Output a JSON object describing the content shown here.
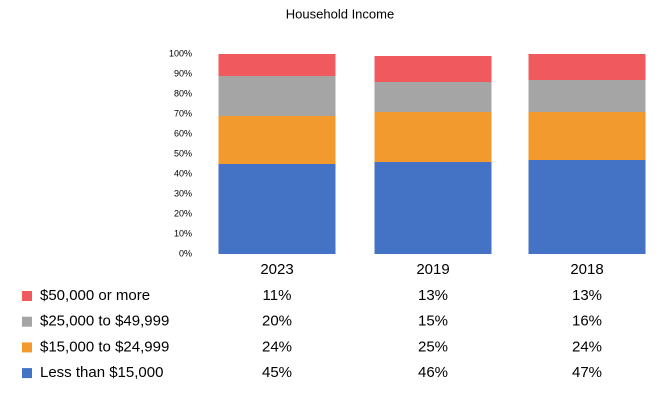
{
  "chart_data": {
    "type": "stacked_bar",
    "title": "Household Income",
    "categories": [
      "2023",
      "2019",
      "2018"
    ],
    "series": [
      {
        "name": "Less than $15,000",
        "color": "#4472c4",
        "values": [
          45,
          46,
          47
        ],
        "value_labels": [
          "45%",
          "46%",
          "47%"
        ]
      },
      {
        "name": "$15,000 to $24,999",
        "color": "#f29a2e",
        "values": [
          24,
          25,
          24
        ],
        "value_labels": [
          "24%",
          "25%",
          "24%"
        ]
      },
      {
        "name": "$25,000 to $49,999",
        "color": "#a5a5a5",
        "values": [
          20,
          15,
          16
        ],
        "value_labels": [
          "20%",
          "15%",
          "16%"
        ]
      },
      {
        "name": "$50,000 or more",
        "color": "#f05a5e",
        "values": [
          11,
          13,
          13
        ],
        "value_labels": [
          "11%",
          "13%",
          "13%"
        ]
      }
    ],
    "ylim": [
      0,
      100
    ],
    "yticks": [
      {
        "value": 0,
        "label": "0%"
      },
      {
        "value": 10,
        "label": "10%"
      },
      {
        "value": 20,
        "label": "20%"
      },
      {
        "value": 30,
        "label": "30%"
      },
      {
        "value": 40,
        "label": "40%"
      },
      {
        "value": 50,
        "label": "50%"
      },
      {
        "value": 60,
        "label": "60%"
      },
      {
        "value": 70,
        "label": "70%"
      },
      {
        "value": 80,
        "label": "80%"
      },
      {
        "value": 90,
        "label": "90%"
      },
      {
        "value": 100,
        "label": "100%"
      }
    ]
  }
}
